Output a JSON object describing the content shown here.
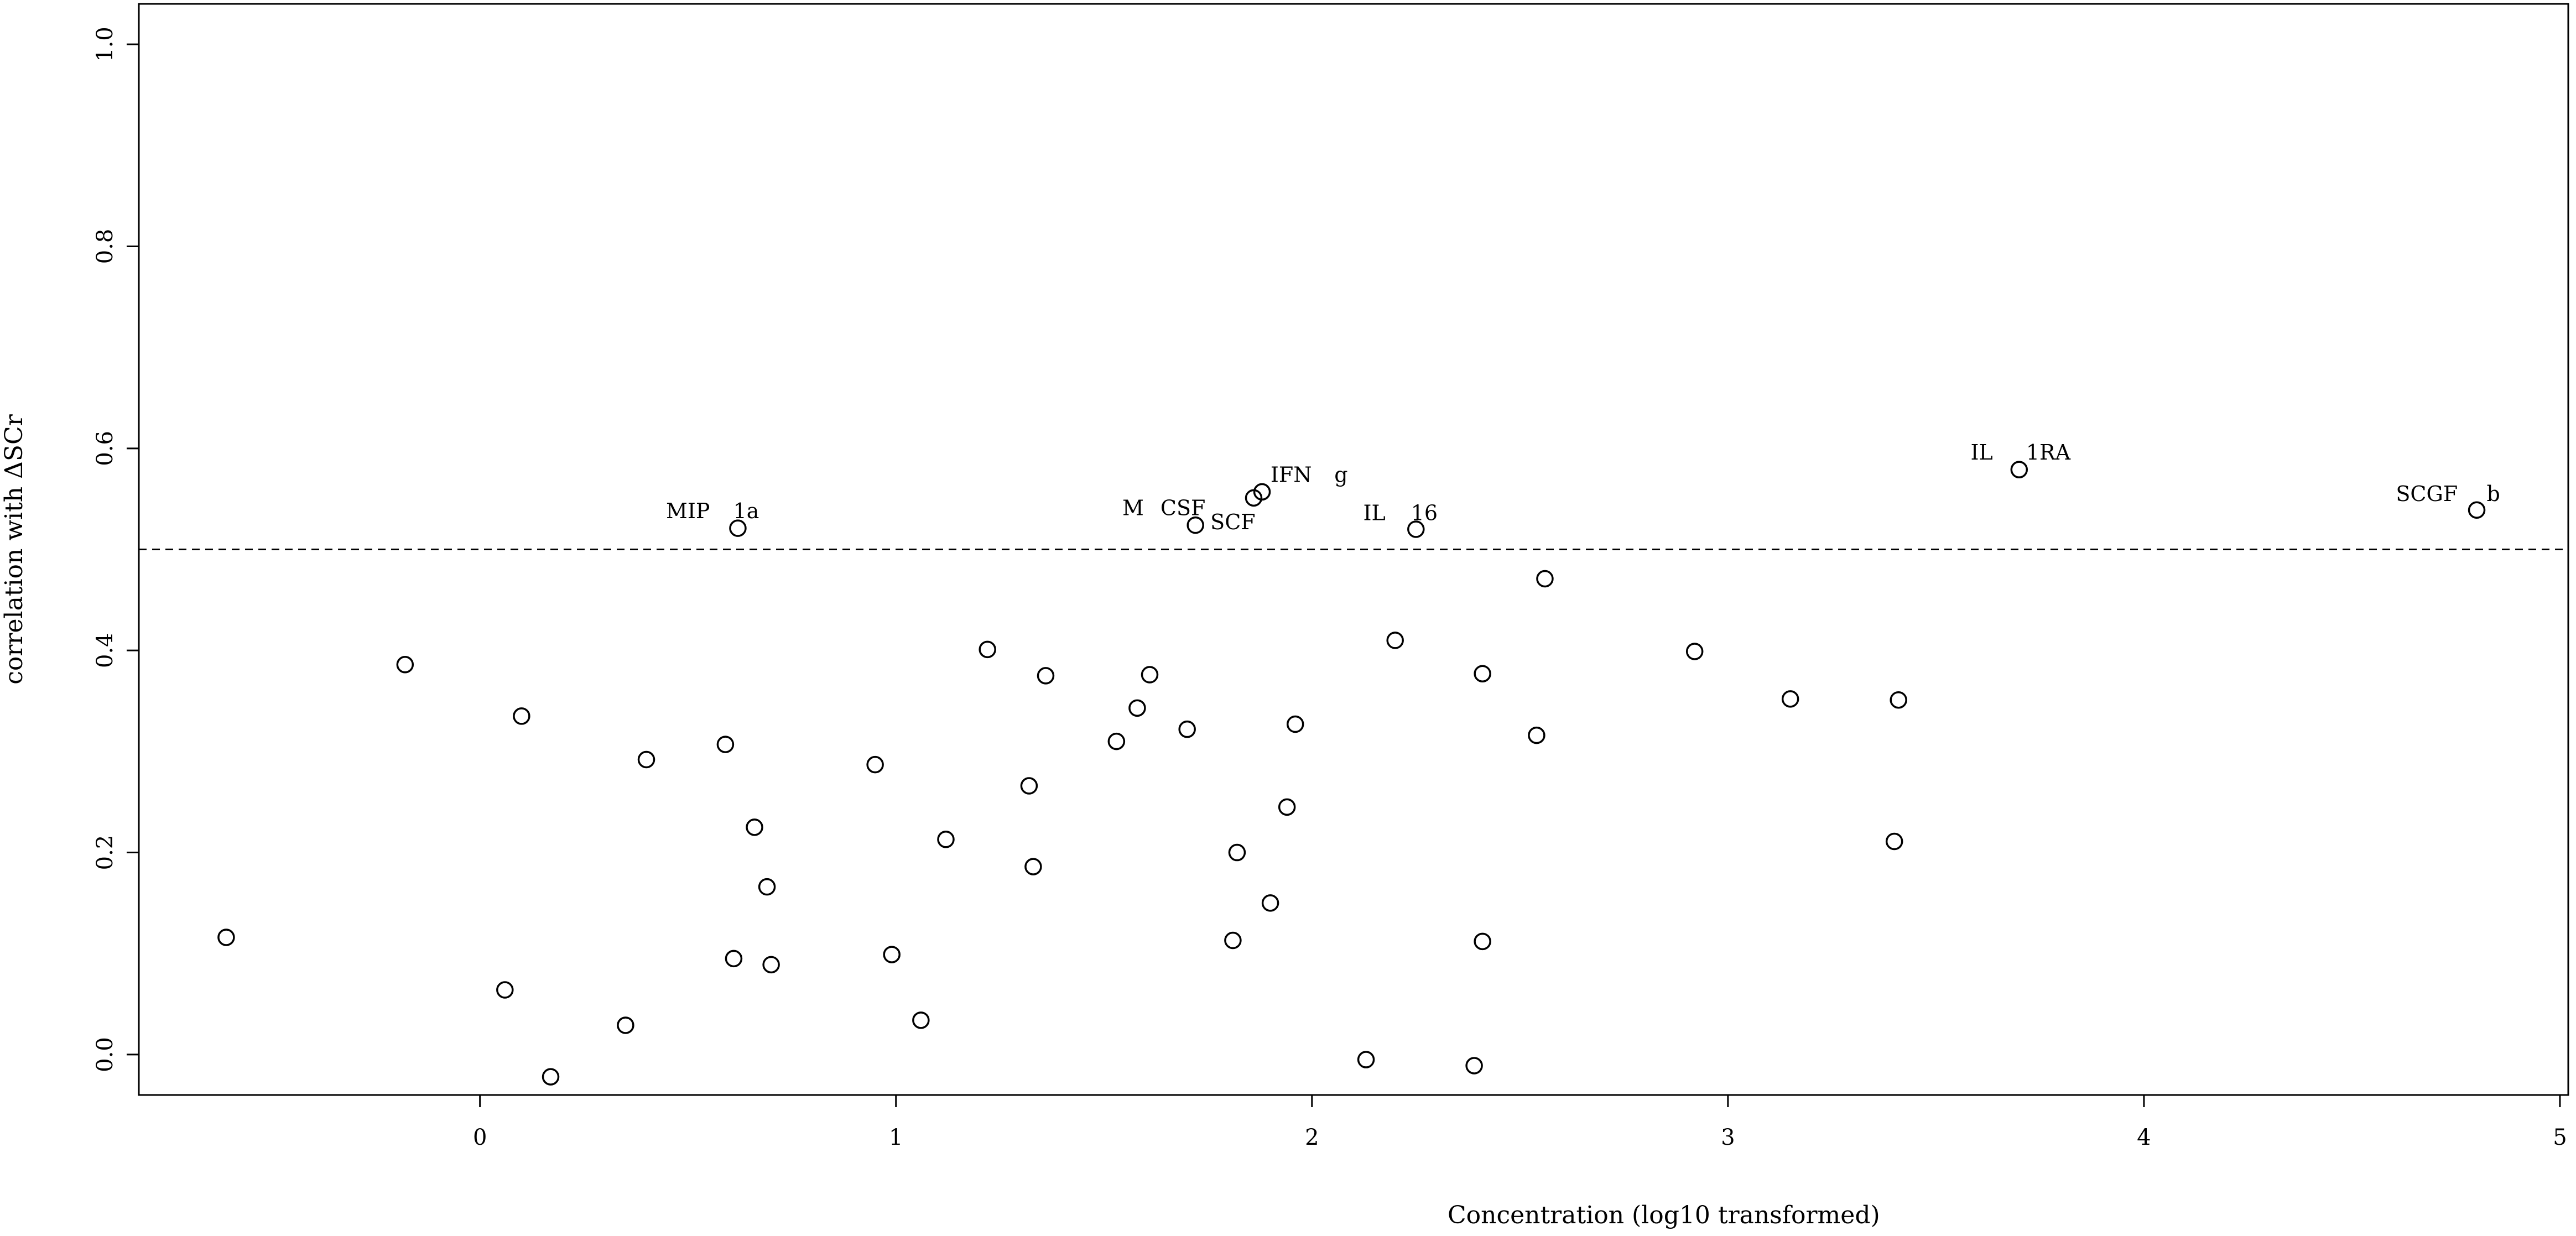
{
  "chart_data": {
    "type": "scatter",
    "title": "",
    "xlabel": "Concentration (log10 transformed)",
    "ylabel": "correlation with ΔSCr",
    "xlim": [
      -0.82,
      5.02
    ],
    "ylim": [
      -0.04,
      1.04
    ],
    "x_ticks": [
      "0",
      "1",
      "2",
      "3",
      "4",
      "5"
    ],
    "y_ticks": [
      "0.0",
      "0.2",
      "0.4",
      "0.6",
      "0.8",
      "1.0"
    ],
    "grid": false,
    "legend": "none",
    "marker": "open-circle",
    "threshold": 0.5,
    "threshold_style": "dashed",
    "points": [
      {
        "x": -0.61,
        "y": 0.116
      },
      {
        "x": -0.18,
        "y": 0.386
      },
      {
        "x": 0.06,
        "y": 0.064
      },
      {
        "x": 0.1,
        "y": 0.335
      },
      {
        "x": 0.17,
        "y": -0.022
      },
      {
        "x": 0.35,
        "y": 0.029
      },
      {
        "x": 0.4,
        "y": 0.292
      },
      {
        "x": 0.59,
        "y": 0.307
      },
      {
        "x": 0.61,
        "y": 0.095
      },
      {
        "x": 0.62,
        "y": 0.521
      },
      {
        "x": 0.66,
        "y": 0.225
      },
      {
        "x": 0.69,
        "y": 0.166
      },
      {
        "x": 0.7,
        "y": 0.089
      },
      {
        "x": 0.95,
        "y": 0.287
      },
      {
        "x": 0.99,
        "y": 0.099
      },
      {
        "x": 1.06,
        "y": 0.034
      },
      {
        "x": 1.12,
        "y": 0.213
      },
      {
        "x": 1.22,
        "y": 0.401
      },
      {
        "x": 1.32,
        "y": 0.266
      },
      {
        "x": 1.33,
        "y": 0.186
      },
      {
        "x": 1.36,
        "y": 0.375
      },
      {
        "x": 1.53,
        "y": 0.31
      },
      {
        "x": 1.58,
        "y": 0.343
      },
      {
        "x": 1.61,
        "y": 0.376
      },
      {
        "x": 1.7,
        "y": 0.322
      },
      {
        "x": 1.72,
        "y": 0.524
      },
      {
        "x": 1.81,
        "y": 0.113
      },
      {
        "x": 1.82,
        "y": 0.2
      },
      {
        "x": 1.86,
        "y": 0.551
      },
      {
        "x": 1.88,
        "y": 0.557
      },
      {
        "x": 1.9,
        "y": 0.15
      },
      {
        "x": 1.94,
        "y": 0.245
      },
      {
        "x": 1.96,
        "y": 0.327
      },
      {
        "x": 2.13,
        "y": -0.005
      },
      {
        "x": 2.2,
        "y": 0.41
      },
      {
        "x": 2.25,
        "y": 0.52
      },
      {
        "x": 2.39,
        "y": -0.011
      },
      {
        "x": 2.41,
        "y": 0.112
      },
      {
        "x": 2.41,
        "y": 0.377
      },
      {
        "x": 2.54,
        "y": 0.316
      },
      {
        "x": 2.56,
        "y": 0.471
      },
      {
        "x": 2.92,
        "y": 0.399
      },
      {
        "x": 3.15,
        "y": 0.352
      },
      {
        "x": 3.4,
        "y": 0.211
      },
      {
        "x": 3.41,
        "y": 0.351
      },
      {
        "x": 3.7,
        "y": 0.579
      },
      {
        "x": 4.8,
        "y": 0.539
      }
    ],
    "annotations": [
      {
        "text": "MIP",
        "x": 0.5,
        "y": 0.538
      },
      {
        "text": "1a",
        "x": 0.64,
        "y": 0.538
      },
      {
        "text": "M",
        "x": 1.57,
        "y": 0.541
      },
      {
        "text": "CSF",
        "x": 1.69,
        "y": 0.541
      },
      {
        "text": "SCF",
        "x": 1.81,
        "y": 0.527
      },
      {
        "text": "IFN",
        "x": 1.95,
        "y": 0.574
      },
      {
        "text": "g",
        "x": 2.07,
        "y": 0.574
      },
      {
        "text": "IL",
        "x": 2.15,
        "y": 0.536
      },
      {
        "text": "16",
        "x": 2.27,
        "y": 0.536
      },
      {
        "text": "IL",
        "x": 3.61,
        "y": 0.596
      },
      {
        "text": "1RA",
        "x": 3.77,
        "y": 0.596
      },
      {
        "text": "SCGF",
        "x": 4.68,
        "y": 0.555
      },
      {
        "text": "b",
        "x": 4.84,
        "y": 0.555
      }
    ]
  }
}
